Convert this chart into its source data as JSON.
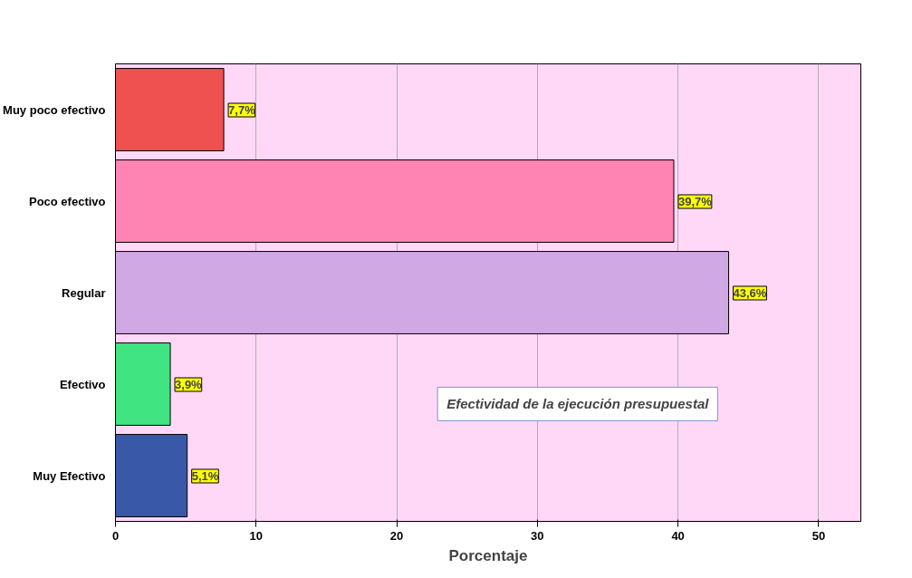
{
  "chart_data": {
    "type": "bar",
    "orientation": "horizontal",
    "categories": [
      "Muy poco efectivo",
      "Poco efectivo",
      "Regular",
      "Efectivo",
      "Muy Efectivo"
    ],
    "values": [
      7.7,
      39.7,
      43.6,
      3.9,
      5.1
    ],
    "colors": [
      "#ef5050",
      "#ff84b4",
      "#d0a8e4",
      "#40e480",
      "#3a58a8"
    ],
    "value_labels": [
      "7,7%",
      "39,7%",
      "43,6%",
      "3,9%",
      "5,1%"
    ],
    "xlim": [
      0,
      53
    ],
    "xticks": [
      0,
      10,
      20,
      30,
      40,
      50
    ],
    "grid": "x",
    "xlabel": "Porcentaje",
    "annotations": [
      "Efectividad de la ejecución presupuestal"
    ]
  }
}
